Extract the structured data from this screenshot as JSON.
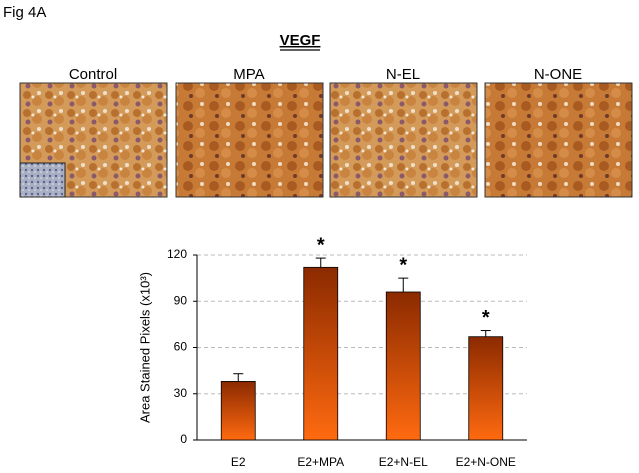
{
  "figure_label": "Fig 4A",
  "panel_title": "VEGF",
  "image_labels": [
    "Control",
    "MPA",
    "N-EL",
    "N-ONE"
  ],
  "chart_data": {
    "type": "bar",
    "y_label": "Area Stained Pixels (x10³)",
    "categories": [
      "E2",
      "E2+MPA",
      "E2+N-EL",
      "E2+N-ONE"
    ],
    "values": [
      38,
      112,
      96,
      67
    ],
    "errors": [
      5,
      6,
      9,
      4
    ],
    "significance": [
      null,
      "*",
      "*",
      "*"
    ],
    "color": [
      "#8b2a00",
      "#ff6a10"
    ],
    "ylim": [
      0,
      120
    ],
    "yticks": [
      0,
      30,
      60,
      90,
      120
    ],
    "grid": true
  }
}
